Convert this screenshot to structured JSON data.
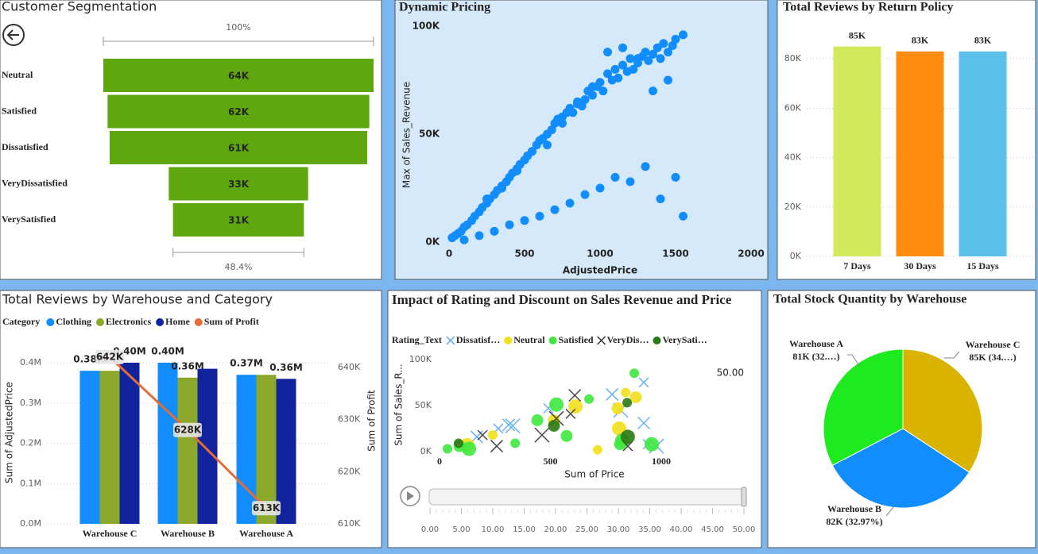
{
  "chart_data": [
    {
      "type": "funnel",
      "title": "Customer Segmentation",
      "top_label": "100%",
      "bottom_label": "48.4%",
      "color": "#5ea70f",
      "categories": [
        "Neutral",
        "Satisfied",
        "Dissatisfied",
        "VeryDissatisfied",
        "VerySatisfied"
      ],
      "values": [
        64000,
        62000,
        61000,
        33000,
        31000
      ],
      "value_labels": [
        "64K",
        "62K",
        "61K",
        "33K",
        "31K"
      ]
    },
    {
      "type": "scatter",
      "title": "Dynamic Pricing",
      "x_label": "AdjustedPrice",
      "y_label": "Max of Sales_Revenue",
      "color": "#118dff",
      "xlim": [
        0,
        2000
      ],
      "xticks": [
        0,
        500,
        1000,
        1500,
        2000
      ],
      "ylim": [
        0,
        100000
      ],
      "yticks": [
        {
          "value": 0,
          "label": "0K"
        },
        {
          "value": 50000,
          "label": "50K"
        },
        {
          "value": 100000,
          "label": "100K"
        }
      ],
      "x": [
        20,
        40,
        60,
        80,
        100,
        120,
        150,
        170,
        200,
        220,
        250,
        270,
        300,
        320,
        350,
        380,
        400,
        420,
        450,
        470,
        500,
        520,
        550,
        580,
        600,
        620,
        650,
        680,
        700,
        720,
        750,
        780,
        800,
        820,
        850,
        880,
        900,
        920,
        950,
        980,
        1000,
        1020,
        1050,
        1080,
        1100,
        1120,
        1150,
        1180,
        1200,
        1220,
        1250,
        1280,
        1300,
        1320,
        1350,
        1380,
        1400,
        1420,
        1450,
        1480,
        1500,
        1550,
        100,
        200,
        300,
        400,
        500,
        600,
        700,
        800,
        900,
        1000,
        1100,
        1200,
        1300,
        1400,
        1500,
        250,
        450,
        650,
        850,
        1050,
        1250,
        1450,
        350,
        550,
        750,
        950,
        1150,
        1350,
        1550
      ],
      "y": [
        2000,
        3000,
        4000,
        5000,
        7000,
        8000,
        10000,
        12000,
        14000,
        16000,
        18000,
        20000,
        22000,
        24000,
        26000,
        28000,
        30000,
        32000,
        34000,
        36000,
        38000,
        40000,
        42000,
        45000,
        47000,
        48000,
        50000,
        52000,
        55000,
        57000,
        58000,
        60000,
        62000,
        60000,
        65000,
        63000,
        66000,
        70000,
        68000,
        72000,
        74000,
        70000,
        78000,
        75000,
        80000,
        76000,
        82000,
        79000,
        85000,
        80000,
        83000,
        86000,
        88000,
        84000,
        87000,
        90000,
        85000,
        92000,
        88000,
        91000,
        94000,
        96000,
        1000,
        3000,
        5000,
        8000,
        10000,
        12000,
        15000,
        18000,
        22000,
        25000,
        30000,
        28000,
        35000,
        20000,
        30000,
        20000,
        33000,
        45000,
        64000,
        88000,
        85000,
        75000,
        25000,
        42000,
        55000,
        72000,
        90000,
        70000,
        12000
      ]
    },
    {
      "type": "bar",
      "title": "Total Reviews by Return Policy",
      "grid": true,
      "categories": [
        "7 Days",
        "30 Days",
        "15 Days"
      ],
      "values": [
        85000,
        83000,
        83000
      ],
      "value_labels": [
        "85K",
        "83K",
        "83K"
      ],
      "colors": [
        "#d2e95c",
        "#fe8c0f",
        "#5bc0ea"
      ],
      "ylim": [
        0,
        90000
      ],
      "yticks": [
        {
          "value": 0,
          "label": "0K"
        },
        {
          "value": 20000,
          "label": "20K"
        },
        {
          "value": 40000,
          "label": "40K"
        },
        {
          "value": 60000,
          "label": "60K"
        },
        {
          "value": 80000,
          "label": "80K"
        }
      ]
    },
    {
      "type": "combo",
      "title": "Total Reviews by Warehouse and Category",
      "legend_title": "Category",
      "grid": true,
      "y_label": "Sum of AdjustedPrice",
      "y2_label": "Sum of Profit",
      "categories": [
        "Warehouse C",
        "Warehouse B",
        "Warehouse A"
      ],
      "series": [
        {
          "name": "Clothing",
          "color": "#118dff",
          "values": [
            380000,
            400000,
            370000
          ],
          "value_labels": [
            "0.38M",
            "0.40M",
            "0.37M"
          ]
        },
        {
          "name": "Electronics",
          "color": "#8ca82a",
          "values": [
            380000,
            363000,
            370000
          ],
          "value_labels": [
            null,
            "0.36M",
            null
          ]
        },
        {
          "name": "Home",
          "color": "#12239e",
          "values": [
            400000,
            385000,
            360000
          ],
          "value_labels": [
            "0.40M",
            null,
            "0.36M"
          ]
        },
        {
          "name": "Sum of Profit",
          "color": "#e66c37",
          "type": "line",
          "axis": "y2",
          "values": [
            642000,
            628000,
            613000
          ],
          "value_labels": [
            "642K",
            "628K",
            "613K"
          ]
        }
      ],
      "ylim": [
        0,
        440000
      ],
      "yticks": [
        {
          "value": 0,
          "label": "0.0M"
        },
        {
          "value": 100000,
          "label": "0.1M"
        },
        {
          "value": 200000,
          "label": "0.2M"
        },
        {
          "value": 300000,
          "label": "0.3M"
        },
        {
          "value": 400000,
          "label": "0.4M"
        }
      ],
      "y2lim": [
        610000,
        644000
      ],
      "y2ticks": [
        {
          "value": 610000,
          "label": "610K"
        },
        {
          "value": 620000,
          "label": "620K"
        },
        {
          "value": 630000,
          "label": "630K"
        },
        {
          "value": 640000,
          "label": "640K"
        }
      ]
    },
    {
      "type": "bubble",
      "title": "Impact of Rating and Discount on Sales Revenue and Price",
      "legend_title": "Rating_Text",
      "x_label": "Sum of Price",
      "y_label": "Sum of Sales_R...",
      "xlim": [
        -20,
        1050
      ],
      "xticks": [
        0,
        500,
        1000
      ],
      "ylim": [
        -3000,
        105000
      ],
      "yticks": [
        {
          "value": 0,
          "label": "0K"
        },
        {
          "value": 50000,
          "label": "50K"
        },
        {
          "value": 100000,
          "label": "100K"
        }
      ],
      "series": [
        {
          "name": "Dissatisf…",
          "color": "#5aa9f0",
          "marker": "x",
          "x": [
            265,
            312,
            330,
            491,
            778,
            817,
            921,
            921,
            978,
            939,
            168
          ],
          "y": [
            25000,
            29000,
            28000,
            47000,
            62000,
            45000,
            75000,
            31000,
            6000,
            8000,
            16000
          ]
        },
        {
          "name": "Neutral",
          "color": "#f2e01b",
          "marker": "circle",
          "x": [
            240,
            516,
            613,
            713,
            803,
            810,
            839,
            885,
            125
          ],
          "y": [
            18000,
            34000,
            49000,
            2000,
            47000,
            25000,
            64000,
            59000,
            7000
          ]
        },
        {
          "name": "Satisfied",
          "color": "#3ee83e",
          "marker": "circle",
          "x": [
            36,
            90,
            133,
            341,
            441,
            527,
            674,
            573,
            824,
            878,
            814,
            957
          ],
          "y": [
            3000,
            6000,
            3000,
            9000,
            34000,
            51000,
            57000,
            17000,
            12000,
            85000,
            8000,
            8000
          ]
        },
        {
          "name": "VeryDis…",
          "color": "#333333",
          "marker": "x",
          "x": [
            194,
            258,
            462,
            591,
            610,
            527,
            849
          ],
          "y": [
            18000,
            6000,
            18000,
            41000,
            61000,
            36000,
            6000
          ]
        },
        {
          "name": "VerySati…",
          "color": "#2b7a13",
          "marker": "circle",
          "x": [
            86,
            516,
            849,
            846
          ],
          "y": [
            9000,
            28000,
            16000,
            53000
          ]
        }
      ],
      "play_axis": {
        "current": {
          "value": 50,
          "label": "50.00"
        },
        "ticks": [
          {
            "value": 0,
            "label": "0.00"
          },
          {
            "value": 5,
            "label": "5.00"
          },
          {
            "value": 10,
            "label": "10.00"
          },
          {
            "value": 15,
            "label": "15.00"
          },
          {
            "value": 20,
            "label": "20.00"
          },
          {
            "value": 25,
            "label": "25.00"
          },
          {
            "value": 30,
            "label": "30.00"
          },
          {
            "value": 35,
            "label": "35.00"
          },
          {
            "value": 40,
            "label": "40.00"
          },
          {
            "value": 45,
            "label": "45.00"
          },
          {
            "value": 50,
            "label": "50.00"
          }
        ]
      }
    },
    {
      "type": "pie",
      "title": "Total Stock Quantity by Warehouse",
      "categories": [
        "Warehouse A",
        "Warehouse B",
        "Warehouse C"
      ],
      "values": [
        81000,
        82000,
        85000
      ],
      "value_labels": [
        "81K (32.…)",
        "82K (32.97%)",
        "85K (34.…)"
      ],
      "colors": [
        "#1eeb1e",
        "#118dff",
        "#d9b300"
      ]
    }
  ]
}
